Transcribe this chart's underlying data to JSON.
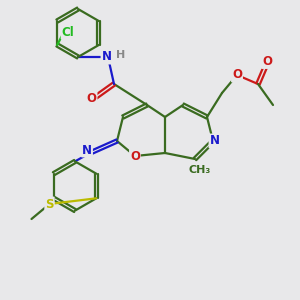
{
  "bg_color": "#e8e8ea",
  "bond_color": "#3a6b20",
  "bond_width": 1.6,
  "dbo": 0.055,
  "atom_colors": {
    "N": "#1a1acc",
    "O": "#cc1a1a",
    "Cl": "#22bb22",
    "S": "#bbbb00",
    "H": "#888888",
    "C": "#3a6b20"
  },
  "font_size": 8.5,
  "fig_size": [
    3.0,
    3.0
  ],
  "dpi": 100
}
